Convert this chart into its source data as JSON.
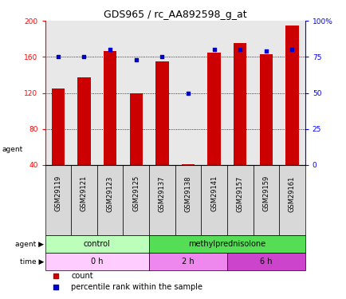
{
  "title": "GDS965 / rc_AA892598_g_at",
  "samples": [
    "GSM29119",
    "GSM29121",
    "GSM29123",
    "GSM29125",
    "GSM29137",
    "GSM29138",
    "GSM29141",
    "GSM29157",
    "GSM29159",
    "GSM29161"
  ],
  "counts": [
    125,
    137,
    167,
    120,
    155,
    41,
    165,
    175,
    163,
    195
  ],
  "percentiles": [
    75,
    75,
    80,
    73,
    75,
    50,
    80,
    80,
    79,
    80
  ],
  "ylim_left": [
    40,
    200
  ],
  "ylim_right": [
    0,
    100
  ],
  "yticks_left": [
    40,
    80,
    120,
    160,
    200
  ],
  "yticks_right": [
    0,
    25,
    50,
    75,
    100
  ],
  "bar_color": "#cc0000",
  "dot_color": "#0000cc",
  "agent_labels": [
    {
      "label": "control",
      "span": [
        0,
        4
      ],
      "color": "#bbffbb"
    },
    {
      "label": "methylprednisolone",
      "span": [
        4,
        10
      ],
      "color": "#55dd55"
    }
  ],
  "time_labels": [
    {
      "label": "0 h",
      "span": [
        0,
        4
      ],
      "color": "#ffccff"
    },
    {
      "label": "2 h",
      "span": [
        4,
        7
      ],
      "color": "#ee88ee"
    },
    {
      "label": "6 h",
      "span": [
        7,
        10
      ],
      "color": "#cc44cc"
    }
  ],
  "bar_width": 0.5,
  "background_plot": "#e8e8e8",
  "background_main": "#ffffff",
  "tick_label_fontsize": 6.5,
  "title_fontsize": 9
}
